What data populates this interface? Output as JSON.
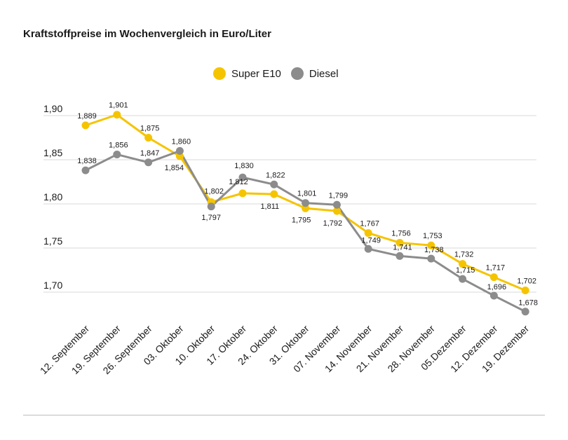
{
  "header": {
    "title": "Kraftstoffpreise im Wochenvergleich in Euro/Liter"
  },
  "colors": {
    "super_e10": "#f5c400",
    "diesel": "#8c8c8c",
    "grid": "#d9d9d9",
    "text": "#1a1a1a"
  },
  "chart_data": {
    "type": "line",
    "title": "Kraftstoffpreise im Wochenvergleich in Euro/Liter",
    "xlabel": "",
    "ylabel": "",
    "ylim": [
      1.66,
      1.92
    ],
    "yticks": [
      1.7,
      1.75,
      1.8,
      1.85,
      1.9
    ],
    "ytick_labels": [
      "1,70",
      "1,75",
      "1,80",
      "1,85",
      "1,90"
    ],
    "grid": true,
    "legend_position": "top",
    "categories": [
      "12. September",
      "19. September",
      "26. September",
      "03. Oktober",
      "10. Oktober",
      "17. Oktober",
      "24. Oktober",
      "31. Oktober",
      "07. November",
      "14. November",
      "21. November",
      "28. November",
      "05.Dezember",
      "12. Dezember",
      "19. Dezember"
    ],
    "series": [
      {
        "name": "Super E10",
        "color": "#f5c400",
        "values": [
          1.889,
          1.901,
          1.875,
          1.854,
          1.802,
          1.812,
          1.811,
          1.795,
          1.792,
          1.767,
          1.756,
          1.753,
          1.732,
          1.717,
          1.702
        ],
        "labels": [
          "1,889",
          "1,901",
          "1,875",
          "1,854",
          "1,802",
          "1,812",
          "1,811",
          "1,795",
          "1,792",
          "1,767",
          "1,756",
          "1,753",
          "1,732",
          "1,717",
          "1,702"
        ]
      },
      {
        "name": "Diesel",
        "color": "#8c8c8c",
        "values": [
          1.838,
          1.856,
          1.847,
          1.86,
          1.797,
          1.83,
          1.822,
          1.801,
          1.799,
          1.749,
          1.741,
          1.738,
          1.715,
          1.696,
          1.678
        ],
        "labels": [
          "1,838",
          "1,856",
          "1,847",
          "1,860",
          "1,797",
          "1,830",
          "1,822",
          "1,801",
          "1,799",
          "1,749",
          "1,741",
          "1,738",
          "1,715",
          "1,696",
          "1,678"
        ]
      }
    ]
  }
}
